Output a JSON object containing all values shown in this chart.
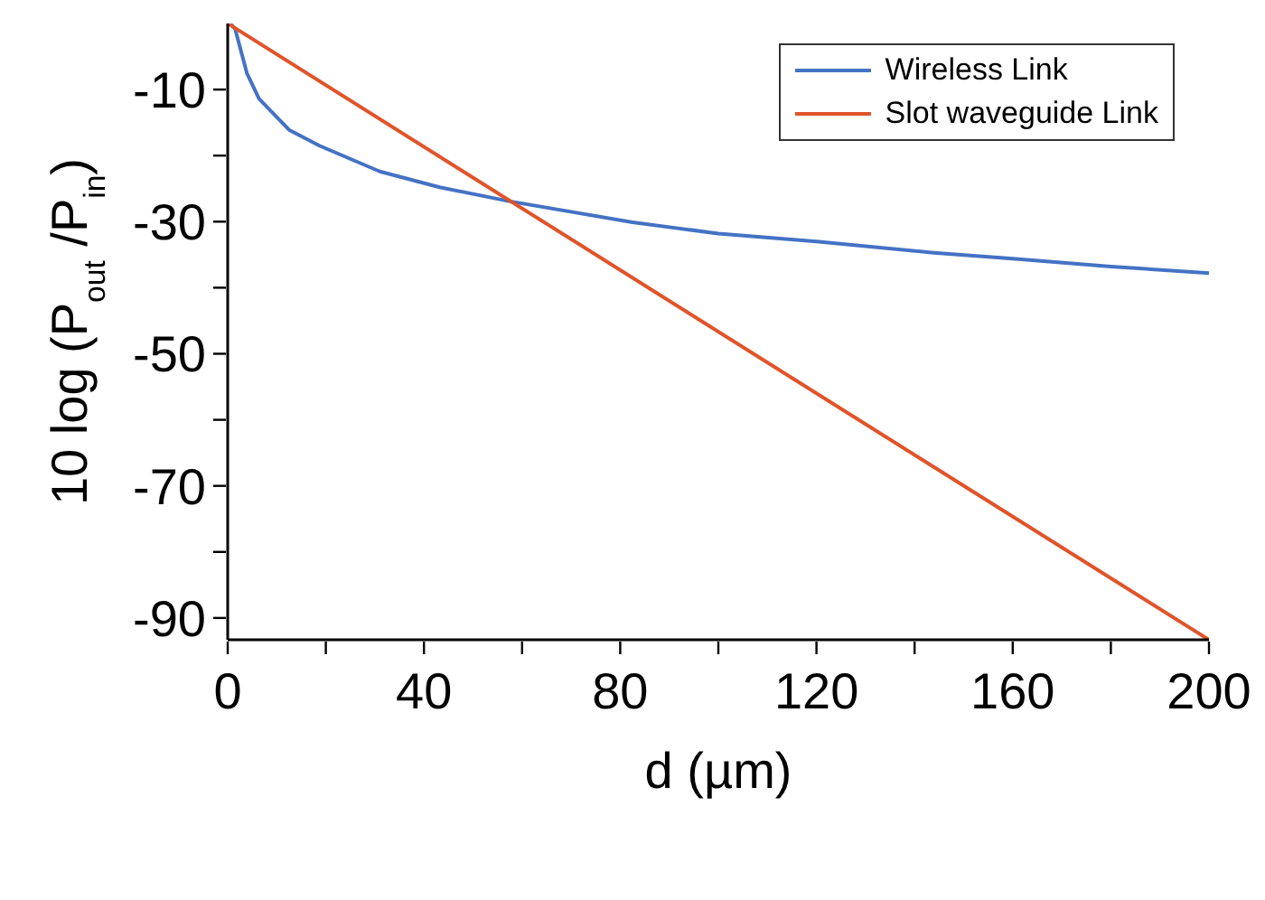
{
  "chart_data": {
    "type": "line",
    "xlabel": "d (µm)",
    "ylabel": "10 log (P$_{out}$ /P$_{in}$)",
    "xlim": [
      0,
      200
    ],
    "ylim": [
      -93.3,
      0
    ],
    "xticks": [
      0,
      {
        "value": 20,
        "label": null
      },
      40,
      {
        "value": 60,
        "label": null
      },
      80,
      {
        "value": 100,
        "label": null
      },
      120,
      {
        "value": 140,
        "label": null
      },
      160,
      {
        "value": 180,
        "label": null
      },
      200
    ],
    "yticks": [
      {
        "value": -20,
        "label": null
      },
      -10,
      -30,
      {
        "value": -40,
        "label": null
      },
      -50,
      {
        "value": -60,
        "label": null
      },
      -70,
      {
        "value": -80,
        "label": null
      },
      -90
    ],
    "legend": "top right",
    "marker": "none",
    "line_style": "solid",
    "series": [
      {
        "name": "Wireless Link",
        "color": "#4472c4",
        "x": [
          0.5,
          1.5,
          3.9,
          6.4,
          12.5,
          18.7,
          31,
          43.2,
          57.3,
          82.5,
          100,
          120,
          143.9,
          160,
          180,
          200
        ],
        "values": [
          0,
          -0.8,
          -7.5,
          -11.4,
          -16.1,
          -18.5,
          -22.4,
          -24.8,
          -26.9,
          -30.1,
          -31.8,
          -33.0,
          -34.7,
          -35.6,
          -36.8,
          -37.8
        ]
      },
      {
        "name": "Slot waveguide Link",
        "color": "#e0542a",
        "x": [
          0,
          200
        ],
        "values": [
          0,
          -93.3
        ]
      }
    ]
  }
}
